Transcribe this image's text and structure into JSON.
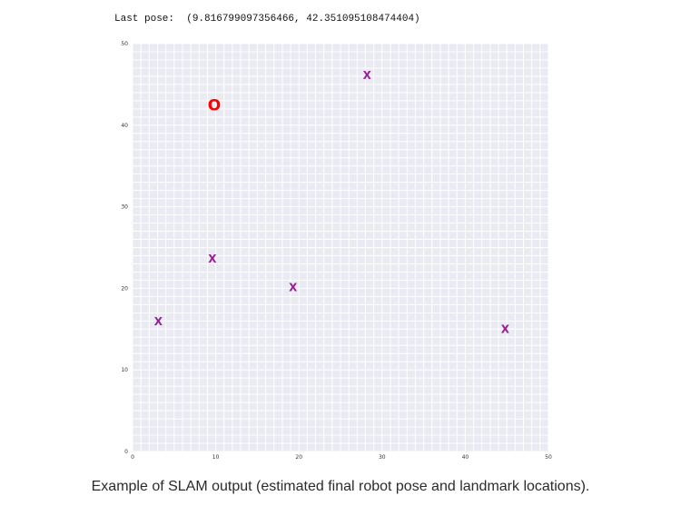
{
  "header": {
    "last_pose_label": "Last pose:",
    "last_pose_value": "(9.816799097356466, 42.351095108474404)"
  },
  "caption": "Example of SLAM output (estimated final robot pose and landmark locations).",
  "chart_data": {
    "type": "scatter",
    "title": "",
    "xlabel": "",
    "ylabel": "",
    "xlim": [
      0,
      50
    ],
    "ylim": [
      0,
      50
    ],
    "grid": true,
    "grid_minor_step": 1,
    "x_ticks": [
      0,
      10,
      20,
      30,
      40,
      50
    ],
    "y_ticks": [
      0,
      10,
      20,
      30,
      40,
      50
    ],
    "background_color": "#eaeaf2",
    "grid_color": "#ffffff",
    "series": [
      {
        "marker": "o",
        "marker_text": "O",
        "color": "#ff0000",
        "points": [
          {
            "x": 9.8168,
            "y": 42.3511
          }
        ]
      },
      {
        "marker": "x",
        "marker_text": "X",
        "color": "#9b1d9b",
        "points": [
          {
            "x": 28.2,
            "y": 46.1
          },
          {
            "x": 9.6,
            "y": 23.6
          },
          {
            "x": 19.3,
            "y": 20.1
          },
          {
            "x": 3.1,
            "y": 15.9
          },
          {
            "x": 44.8,
            "y": 15.0
          }
        ]
      }
    ]
  }
}
